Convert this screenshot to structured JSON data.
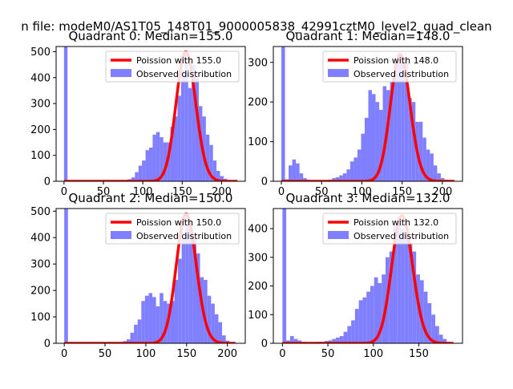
{
  "figure": {
    "suptitle": "n file: modeM0/AS1T05_148T01_9000005838_42991cztM0_level2_quad_clean"
  },
  "colors": {
    "hist": "#7f7fff",
    "poisson": "#ff0000",
    "axis": "#000000",
    "legend_border": "#cccccc"
  },
  "chart_data": [
    {
      "type": "bar",
      "title": "Quadrant 0: Median=155.0",
      "xlim": [
        -10,
        230
      ],
      "ylim": [
        0,
        520
      ],
      "xticks": [
        0,
        50,
        100,
        150,
        200
      ],
      "yticks": [
        0,
        100,
        200,
        300,
        400,
        500
      ],
      "legend": [
        "Poission with 155.0",
        "Observed distribution"
      ],
      "legend_position": "top-right",
      "bin_width": 4.5,
      "bins": [
        [
          0,
          520
        ],
        [
          4.5,
          0
        ],
        [
          9,
          2
        ],
        [
          13.5,
          0
        ],
        [
          18,
          0
        ],
        [
          22.5,
          0
        ],
        [
          27,
          0
        ],
        [
          31.5,
          0
        ],
        [
          36,
          0
        ],
        [
          40.5,
          0
        ],
        [
          45,
          0
        ],
        [
          49.5,
          0
        ],
        [
          54,
          0
        ],
        [
          58.5,
          0
        ],
        [
          63,
          0
        ],
        [
          67.5,
          0
        ],
        [
          72,
          0
        ],
        [
          76.5,
          0
        ],
        [
          81,
          8
        ],
        [
          85.5,
          15
        ],
        [
          90,
          35
        ],
        [
          94.5,
          60
        ],
        [
          99,
          80
        ],
        [
          103.5,
          120
        ],
        [
          108,
          130
        ],
        [
          112.5,
          180
        ],
        [
          117,
          190
        ],
        [
          121.5,
          170
        ],
        [
          126,
          150
        ],
        [
          130.5,
          150
        ],
        [
          135,
          210
        ],
        [
          139.5,
          250
        ],
        [
          144,
          330
        ],
        [
          148.5,
          430
        ],
        [
          153,
          490
        ],
        [
          157.5,
          360
        ],
        [
          162,
          450
        ],
        [
          166.5,
          400
        ],
        [
          171,
          290
        ],
        [
          175.5,
          250
        ],
        [
          180,
          180
        ],
        [
          184.5,
          140
        ],
        [
          189,
          80
        ],
        [
          193.5,
          40
        ],
        [
          198,
          20
        ],
        [
          202.5,
          10
        ],
        [
          207,
          5
        ],
        [
          211.5,
          2
        ]
      ],
      "poisson_mean": 155.0,
      "poisson_peak": 500,
      "curve_x": [
        0,
        220
      ]
    },
    {
      "type": "bar",
      "title": "Quadrant 1: Median=148.0",
      "xlim": [
        -10,
        225
      ],
      "ylim": [
        0,
        340
      ],
      "xticks": [
        0,
        50,
        100,
        150,
        200
      ],
      "yticks": [
        0,
        100,
        200,
        300
      ],
      "legend": [
        "Poission with 148.0",
        "Observed distribution"
      ],
      "legend_position": "top-right",
      "bin_width": 4.5,
      "bins": [
        [
          0,
          340
        ],
        [
          4.5,
          5
        ],
        [
          9,
          40
        ],
        [
          13.5,
          55
        ],
        [
          18,
          45
        ],
        [
          22.5,
          20
        ],
        [
          27,
          8
        ],
        [
          31.5,
          4
        ],
        [
          36,
          3
        ],
        [
          40.5,
          3
        ],
        [
          45,
          2
        ],
        [
          49.5,
          2
        ],
        [
          54,
          2
        ],
        [
          58.5,
          4
        ],
        [
          63,
          8
        ],
        [
          67.5,
          10
        ],
        [
          72,
          15
        ],
        [
          76.5,
          20
        ],
        [
          81,
          30
        ],
        [
          85.5,
          50
        ],
        [
          90,
          60
        ],
        [
          94.5,
          80
        ],
        [
          99,
          120
        ],
        [
          103.5,
          160
        ],
        [
          108,
          230
        ],
        [
          112.5,
          220
        ],
        [
          117,
          200
        ],
        [
          121.5,
          180
        ],
        [
          126,
          240
        ],
        [
          130.5,
          230
        ],
        [
          135,
          250
        ],
        [
          139.5,
          300
        ],
        [
          144,
          320
        ],
        [
          148.5,
          300
        ],
        [
          153,
          310
        ],
        [
          157.5,
          210
        ],
        [
          162,
          200
        ],
        [
          166.5,
          150
        ],
        [
          171,
          150
        ],
        [
          175.5,
          110
        ],
        [
          180,
          80
        ],
        [
          184.5,
          70
        ],
        [
          189,
          40
        ],
        [
          193.5,
          20
        ],
        [
          198,
          8
        ],
        [
          202.5,
          4
        ],
        [
          207,
          2
        ]
      ],
      "poisson_mean": 148.0,
      "poisson_peak": 320,
      "curve_x": [
        0,
        215
      ]
    },
    {
      "type": "bar",
      "title": "Quadrant 2: Median=150.0",
      "xlim": [
        -10,
        222
      ],
      "ylim": [
        0,
        510
      ],
      "xticks": [
        0,
        50,
        100,
        150,
        200
      ],
      "yticks": [
        0,
        100,
        200,
        300,
        400,
        500
      ],
      "legend": [
        "Poission with 150.0",
        "Observed distribution"
      ],
      "legend_position": "top-right",
      "bin_width": 4.5,
      "bins": [
        [
          0,
          510
        ],
        [
          4.5,
          0
        ],
        [
          9,
          0
        ],
        [
          13.5,
          0
        ],
        [
          18,
          0
        ],
        [
          22.5,
          0
        ],
        [
          27,
          0
        ],
        [
          31.5,
          0
        ],
        [
          36,
          0
        ],
        [
          40.5,
          0
        ],
        [
          45,
          0
        ],
        [
          49.5,
          0
        ],
        [
          54,
          0
        ],
        [
          58.5,
          0
        ],
        [
          63,
          0
        ],
        [
          67.5,
          2
        ],
        [
          72,
          8
        ],
        [
          76.5,
          15
        ],
        [
          81,
          40
        ],
        [
          85.5,
          70
        ],
        [
          90,
          90
        ],
        [
          94.5,
          160
        ],
        [
          99,
          180
        ],
        [
          103.5,
          190
        ],
        [
          108,
          175
        ],
        [
          112.5,
          140
        ],
        [
          117,
          190
        ],
        [
          121.5,
          160
        ],
        [
          126,
          150
        ],
        [
          130.5,
          160
        ],
        [
          135,
          240
        ],
        [
          139.5,
          320
        ],
        [
          144,
          400
        ],
        [
          148.5,
          490
        ],
        [
          153,
          440
        ],
        [
          157.5,
          400
        ],
        [
          162,
          340
        ],
        [
          166.5,
          250
        ],
        [
          171,
          240
        ],
        [
          175.5,
          180
        ],
        [
          180,
          150
        ],
        [
          184.5,
          110
        ],
        [
          189,
          80
        ],
        [
          193.5,
          30
        ],
        [
          198,
          10
        ],
        [
          202.5,
          5
        ]
      ],
      "poisson_mean": 150.0,
      "poisson_peak": 490,
      "curve_x": [
        0,
        210
      ]
    },
    {
      "type": "bar",
      "title": "Quadrant 3: Median=132.0",
      "xlim": [
        -10,
        198
      ],
      "ylim": [
        0,
        470
      ],
      "xticks": [
        0,
        50,
        100,
        150
      ],
      "yticks": [
        0,
        100,
        200,
        300,
        400
      ],
      "legend": [
        "Poission with 132.0",
        "Observed distribution"
      ],
      "legend_position": "top-right",
      "bin_width": 4.2,
      "bins": [
        [
          0,
          470
        ],
        [
          4.2,
          10
        ],
        [
          8.4,
          25
        ],
        [
          12.6,
          15
        ],
        [
          16.8,
          10
        ],
        [
          21,
          5
        ],
        [
          25.2,
          3
        ],
        [
          29.4,
          3
        ],
        [
          33.6,
          3
        ],
        [
          37.8,
          5
        ],
        [
          42,
          5
        ],
        [
          46.2,
          8
        ],
        [
          50.4,
          10
        ],
        [
          54.6,
          15
        ],
        [
          58.8,
          20
        ],
        [
          63,
          25
        ],
        [
          67.2,
          40
        ],
        [
          71.4,
          60
        ],
        [
          75.6,
          80
        ],
        [
          79.8,
          120
        ],
        [
          84,
          150
        ],
        [
          88.2,
          160
        ],
        [
          92.4,
          180
        ],
        [
          96.6,
          200
        ],
        [
          100.8,
          230
        ],
        [
          105,
          210
        ],
        [
          109.2,
          240
        ],
        [
          113.4,
          300
        ],
        [
          117.6,
          320
        ],
        [
          121.8,
          410
        ],
        [
          126,
          440
        ],
        [
          130.2,
          400
        ],
        [
          134.4,
          390
        ],
        [
          138.6,
          350
        ],
        [
          142.8,
          320
        ],
        [
          147,
          240
        ],
        [
          151.2,
          220
        ],
        [
          155.4,
          180
        ],
        [
          159.6,
          140
        ],
        [
          163.8,
          100
        ],
        [
          168,
          60
        ],
        [
          172.2,
          30
        ],
        [
          176.4,
          15
        ],
        [
          180.6,
          5
        ]
      ],
      "poisson_mean": 132.0,
      "poisson_peak": 445,
      "curve_x": [
        0,
        188
      ]
    }
  ]
}
